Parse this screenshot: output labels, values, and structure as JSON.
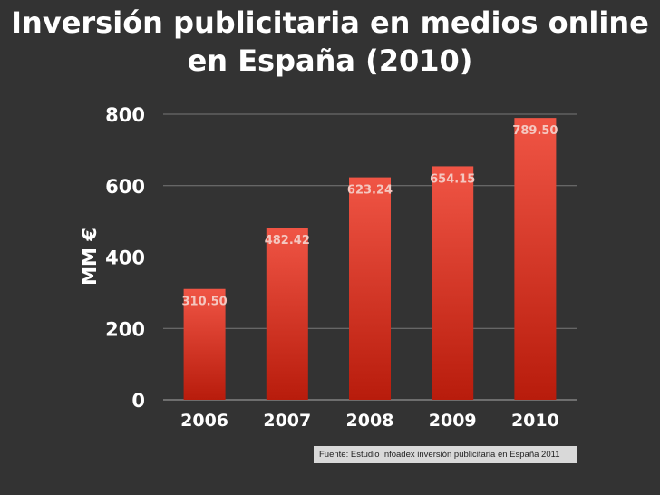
{
  "slide": {
    "title_line1": "Inversión publicitaria en medios online",
    "title_line2": "en España (2010)",
    "source": "Fuente: Estudio Infoadex inversión publicitaria en España 2011"
  },
  "colors": {
    "background": "#333333",
    "bar_top": "#f05545",
    "bar_bottom": "#b81c0c",
    "text": "#ffffff",
    "grid": "#777777"
  },
  "chart_data": {
    "type": "bar",
    "title": "Inversión publicitaria en medios online en España (2010)",
    "xlabel": "",
    "ylabel": "MM €",
    "categories": [
      "2006",
      "2007",
      "2008",
      "2009",
      "2010"
    ],
    "values": [
      310.5,
      482.42,
      623.24,
      654.15,
      789.5
    ],
    "data_labels": [
      "310.50",
      "482.42",
      "623.24",
      "654.15",
      "789.50"
    ],
    "ylim": [
      0,
      800
    ],
    "yticks": [
      0,
      200,
      400,
      600,
      800
    ],
    "grid": true,
    "legend": "none"
  }
}
